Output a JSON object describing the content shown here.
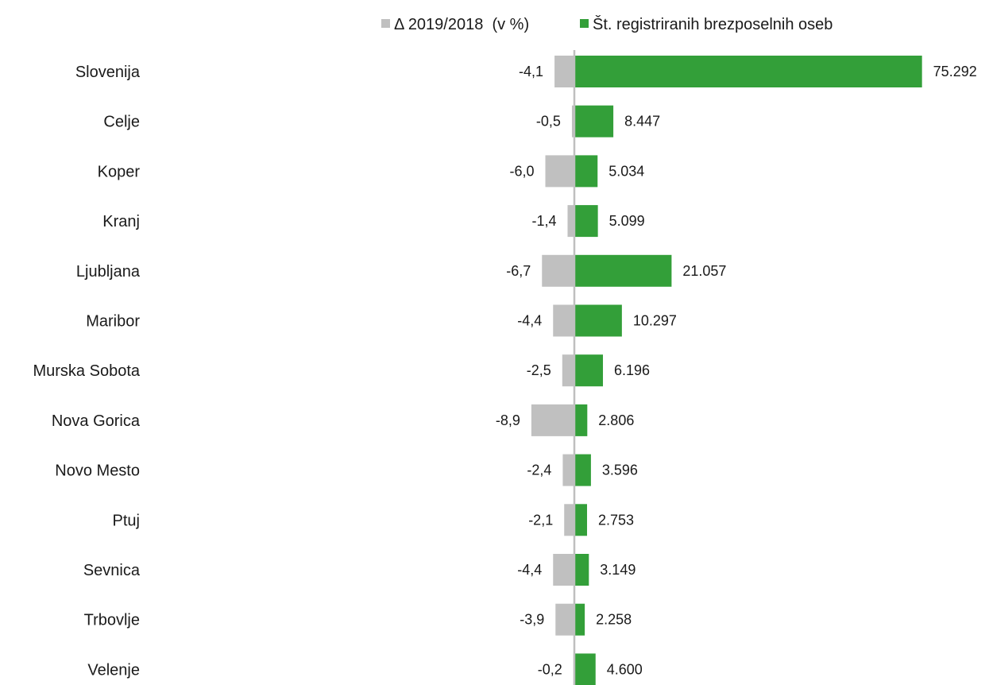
{
  "chart_data": {
    "type": "bar",
    "orientation": "horizontal",
    "categories": [
      "Slovenija",
      "Celje",
      "Koper",
      "Kranj",
      "Ljubljana",
      "Maribor",
      "Murska Sobota",
      "Nova Gorica",
      "Novo Mesto",
      "Ptuj",
      "Sevnica",
      "Trbovlje",
      "Velenje"
    ],
    "series": [
      {
        "name": "Δ 2019/2018  (v %)",
        "color": "#c0c0c0",
        "values": [
          -4.1,
          -0.5,
          -6.0,
          -1.4,
          -6.7,
          -4.4,
          -2.5,
          -8.9,
          -2.4,
          -2.1,
          -4.4,
          -3.9,
          -0.2
        ],
        "labels": [
          "-4,1",
          "-0,5",
          "-6,0",
          "-1,4",
          "-6,7",
          "-4,4",
          "-2,5",
          "-8,9",
          "-2,4",
          "-2,1",
          "-4,4",
          "-3,9",
          "-0,2"
        ]
      },
      {
        "name": "Št. registriranih brezposelnih oseb",
        "color": "#339f39",
        "values": [
          75292,
          8447,
          5034,
          5099,
          21057,
          10297,
          6196,
          2806,
          3596,
          2753,
          3149,
          2258,
          4600
        ],
        "labels": [
          "75.292",
          "8.447",
          "5.034",
          "5.099",
          "21.057",
          "10.297",
          "6.196",
          "2.806",
          "3.596",
          "2.753",
          "3.149",
          "2.258",
          "4.600"
        ]
      }
    ],
    "axis_color": "#bfbfbf",
    "emphasis_label_color": "#595959",
    "legend_position": "top",
    "grid": false
  }
}
